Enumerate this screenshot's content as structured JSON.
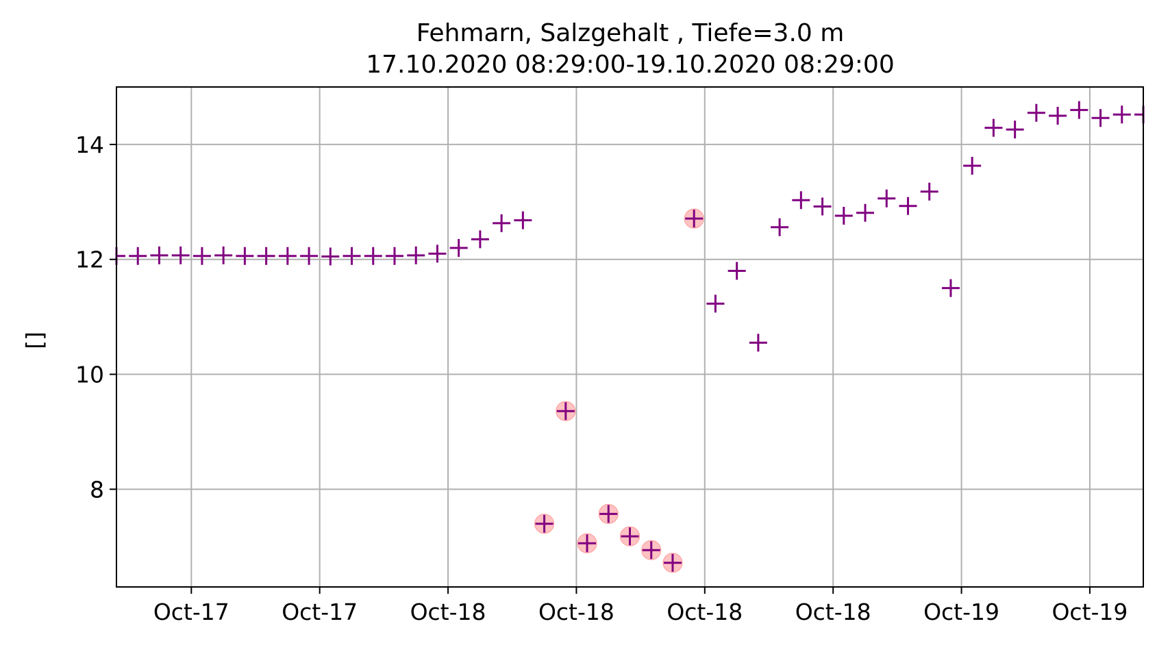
{
  "chart_data": {
    "type": "scatter",
    "title": "Fehmarn, Salzgehalt , Tiefe=3.0 m",
    "subtitle": "17.10.2020 08:29:00-19.10.2020 08:29:00",
    "xlabel": "",
    "ylabel": "[]",
    "xlim": [
      0,
      48
    ],
    "ylim": [
      6.3,
      15.0
    ],
    "grid": true,
    "x_ticks": [
      {
        "x": 3.5,
        "label": "Oct-17"
      },
      {
        "x": 9.5,
        "label": "Oct-17"
      },
      {
        "x": 15.5,
        "label": "Oct-18"
      },
      {
        "x": 21.5,
        "label": "Oct-18"
      },
      {
        "x": 27.5,
        "label": "Oct-18"
      },
      {
        "x": 33.5,
        "label": "Oct-18"
      },
      {
        "x": 39.5,
        "label": "Oct-19"
      },
      {
        "x": 45.5,
        "label": "Oct-19"
      }
    ],
    "y_ticks": [
      {
        "y": 8,
        "label": "8"
      },
      {
        "y": 10,
        "label": "10"
      },
      {
        "y": 12,
        "label": "12"
      },
      {
        "y": 14,
        "label": "14"
      }
    ],
    "marker_color": "#800080",
    "flag_color": "#ff9999",
    "series": [
      {
        "marker": "plus",
        "points": [
          {
            "x": 0,
            "y": 12.06
          },
          {
            "x": 1,
            "y": 12.06
          },
          {
            "x": 2,
            "y": 12.07
          },
          {
            "x": 3,
            "y": 12.07
          },
          {
            "x": 4,
            "y": 12.06
          },
          {
            "x": 5,
            "y": 12.07
          },
          {
            "x": 6,
            "y": 12.06
          },
          {
            "x": 7,
            "y": 12.06
          },
          {
            "x": 8,
            "y": 12.06
          },
          {
            "x": 9,
            "y": 12.06
          },
          {
            "x": 10,
            "y": 12.05
          },
          {
            "x": 11,
            "y": 12.06
          },
          {
            "x": 12,
            "y": 12.06
          },
          {
            "x": 13,
            "y": 12.06
          },
          {
            "x": 14,
            "y": 12.07
          },
          {
            "x": 15,
            "y": 12.1
          },
          {
            "x": 16,
            "y": 12.2
          },
          {
            "x": 17,
            "y": 12.35
          },
          {
            "x": 18,
            "y": 12.63
          },
          {
            "x": 19,
            "y": 12.68
          },
          {
            "x": 20,
            "y": 7.4
          },
          {
            "x": 21,
            "y": 9.36
          },
          {
            "x": 22,
            "y": 7.06
          },
          {
            "x": 23,
            "y": 7.57
          },
          {
            "x": 24,
            "y": 7.18
          },
          {
            "x": 25,
            "y": 6.94
          },
          {
            "x": 26,
            "y": 6.72
          },
          {
            "x": 27,
            "y": 12.71
          },
          {
            "x": 28,
            "y": 11.23
          },
          {
            "x": 29,
            "y": 11.8
          },
          {
            "x": 30,
            "y": 10.55
          },
          {
            "x": 31,
            "y": 12.56
          },
          {
            "x": 32,
            "y": 13.03
          },
          {
            "x": 33,
            "y": 12.92
          },
          {
            "x": 34,
            "y": 12.76
          },
          {
            "x": 35,
            "y": 12.81
          },
          {
            "x": 36,
            "y": 13.06
          },
          {
            "x": 37,
            "y": 12.93
          },
          {
            "x": 38,
            "y": 13.18
          },
          {
            "x": 39,
            "y": 11.5
          },
          {
            "x": 40,
            "y": 13.63
          },
          {
            "x": 41,
            "y": 14.29
          },
          {
            "x": 42,
            "y": 14.26
          },
          {
            "x": 43,
            "y": 14.55
          },
          {
            "x": 44,
            "y": 14.5
          },
          {
            "x": 45,
            "y": 14.6
          },
          {
            "x": 46,
            "y": 14.46
          },
          {
            "x": 47,
            "y": 14.52
          },
          {
            "x": 48,
            "y": 14.52
          }
        ]
      },
      {
        "marker": "circle",
        "points": [
          {
            "x": 20,
            "y": 7.4
          },
          {
            "x": 21,
            "y": 9.36
          },
          {
            "x": 22,
            "y": 7.06
          },
          {
            "x": 23,
            "y": 7.57
          },
          {
            "x": 24,
            "y": 7.18
          },
          {
            "x": 25,
            "y": 6.94
          },
          {
            "x": 26,
            "y": 6.72
          },
          {
            "x": 27,
            "y": 12.71
          }
        ]
      }
    ]
  }
}
